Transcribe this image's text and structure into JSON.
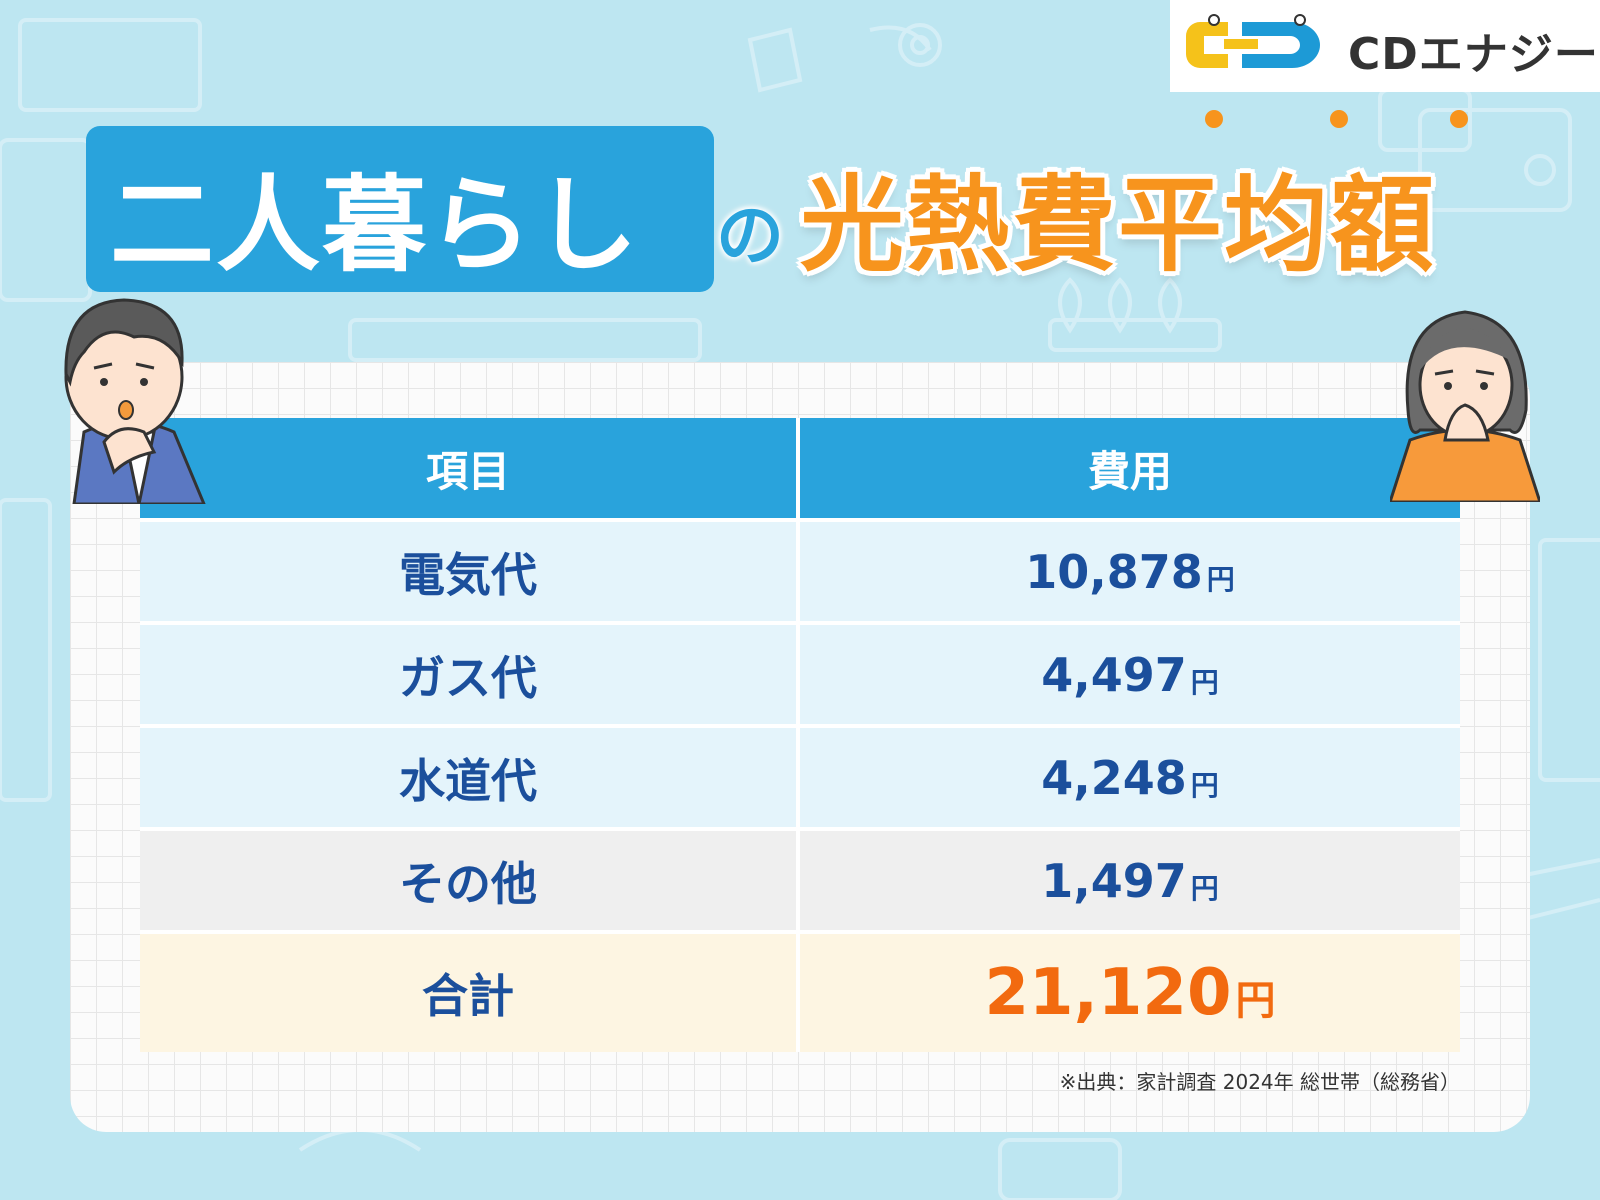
{
  "logo": {
    "text": "CDエナジー",
    "colors": {
      "yellow": "#f5c21a",
      "blue": "#1d9ad6"
    }
  },
  "title": {
    "main": "二人暮らし",
    "connector": "の",
    "accent": "光熱費平均額"
  },
  "table": {
    "headers": {
      "item": "項目",
      "cost": "費用"
    },
    "rows": [
      {
        "item": "電気代",
        "value": "10,878",
        "unit": "円"
      },
      {
        "item": "ガス代",
        "value": "4,497",
        "unit": "円"
      },
      {
        "item": "水道代",
        "value": "4,248",
        "unit": "円"
      },
      {
        "item": "その他",
        "value": "1,497",
        "unit": "円"
      }
    ],
    "total": {
      "item": "合計",
      "value": "21,120",
      "unit": "円"
    }
  },
  "source": "※出典：家計調査 2024年 総世帯（総務省）",
  "colors": {
    "accent_blue": "#29a3dc",
    "accent_orange": "#f7941d",
    "text_navy": "#1b4f9c",
    "total_orange": "#f26a0f"
  }
}
